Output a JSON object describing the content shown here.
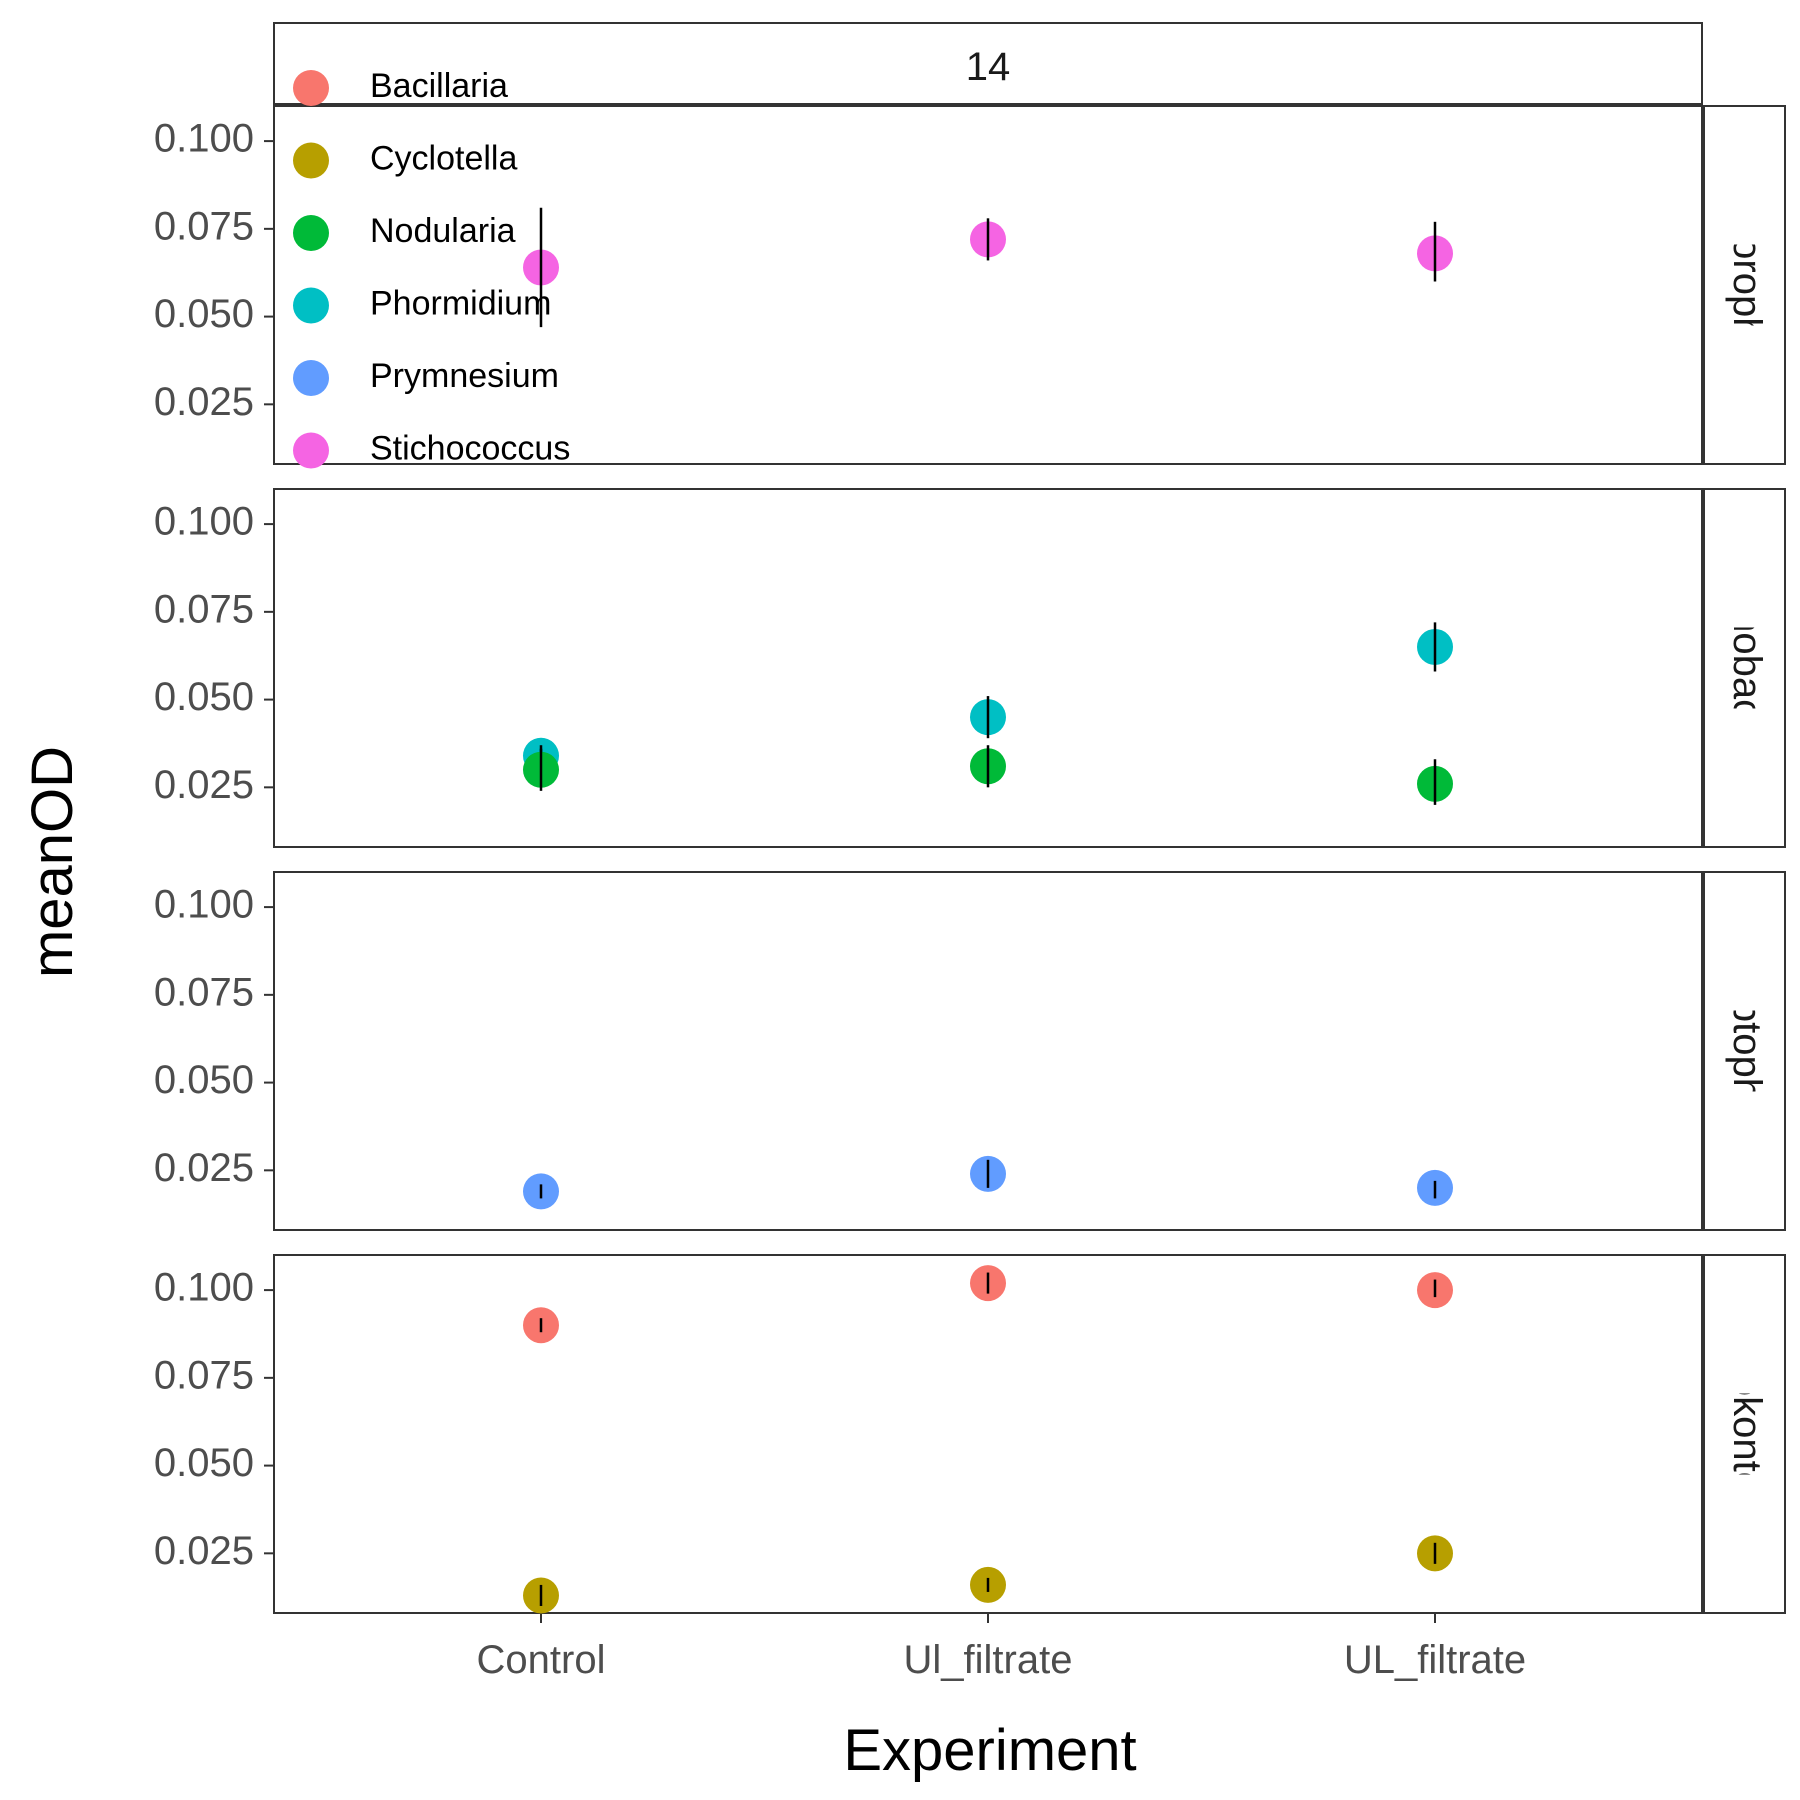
{
  "chart_data": {
    "type": "scatter",
    "facet_top_label": "14",
    "xlabel": "Experiment",
    "ylabel": "meanOD",
    "categories": [
      "Control",
      "Ul_filtrate",
      "UL_filtrate"
    ],
    "ylim": [
      0.008,
      0.11
    ],
    "yticks": [
      0.025,
      0.05,
      0.075,
      0.1
    ],
    "ytick_labels": [
      "0.025",
      "0.050",
      "0.075",
      "0.100"
    ],
    "grid": false,
    "legend_placement": "top-left (inside)",
    "legend": [
      {
        "name": "Bacillaria",
        "color": "#F8766D"
      },
      {
        "name": "Cyclotella",
        "color": "#B79F00"
      },
      {
        "name": "Nodularia",
        "color": "#00BA38"
      },
      {
        "name": "Phormidium",
        "color": "#00BFC4"
      },
      {
        "name": "Prymnesium",
        "color": "#619CFF"
      },
      {
        "name": "Stichococcus",
        "color": "#F564E3"
      }
    ],
    "panels": [
      {
        "label": "Chlorophyta",
        "series": [
          {
            "name": "Stichococcus",
            "values": [
              0.064,
              0.072,
              0.068
            ],
            "err_low": [
              0.047,
              0.066,
              0.06
            ],
            "err_high": [
              0.081,
              0.078,
              0.077
            ]
          }
        ]
      },
      {
        "label": "Cyanobacteria",
        "series": [
          {
            "name": "Phormidium",
            "values": [
              0.034,
              0.045,
              0.065
            ],
            "err_low": [
              0.031,
              0.039,
              0.058
            ],
            "err_high": [
              0.037,
              0.051,
              0.072
            ]
          },
          {
            "name": "Nodularia",
            "values": [
              0.03,
              0.031,
              0.026
            ],
            "err_low": [
              0.024,
              0.025,
              0.02
            ],
            "err_high": [
              0.036,
              0.037,
              0.033
            ]
          }
        ]
      },
      {
        "label": "Haptophyta",
        "series": [
          {
            "name": "Prymnesium",
            "values": [
              0.019,
              0.024,
              0.02
            ],
            "err_low": [
              0.017,
              0.02,
              0.017
            ],
            "err_high": [
              0.021,
              0.028,
              0.022
            ]
          }
        ]
      },
      {
        "label": "Heterokontophyta",
        "series": [
          {
            "name": "Bacillaria",
            "values": [
              0.09,
              0.102,
              0.1
            ],
            "err_low": [
              0.088,
              0.099,
              0.098
            ],
            "err_high": [
              0.092,
              0.105,
              0.103
            ]
          },
          {
            "name": "Cyclotella",
            "values": [
              0.013,
              0.016,
              0.025
            ],
            "err_low": [
              0.01,
              0.014,
              0.022
            ],
            "err_high": [
              0.016,
              0.018,
              0.028
            ]
          }
        ]
      }
    ]
  }
}
